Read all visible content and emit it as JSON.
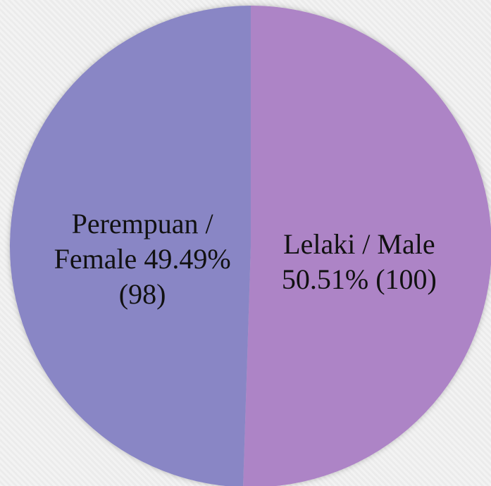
{
  "chart_data": {
    "type": "pie",
    "categories": [
      "Lelaki / Male",
      "Perempuan / Female"
    ],
    "values": [
      50.51,
      49.49
    ],
    "value_labels": [
      "50.51%",
      "49.49%"
    ],
    "counts": [
      100,
      98
    ],
    "count_labels": [
      "(100)",
      "(98)"
    ],
    "colors": [
      "#ad84c6",
      "#8986c5"
    ]
  }
}
